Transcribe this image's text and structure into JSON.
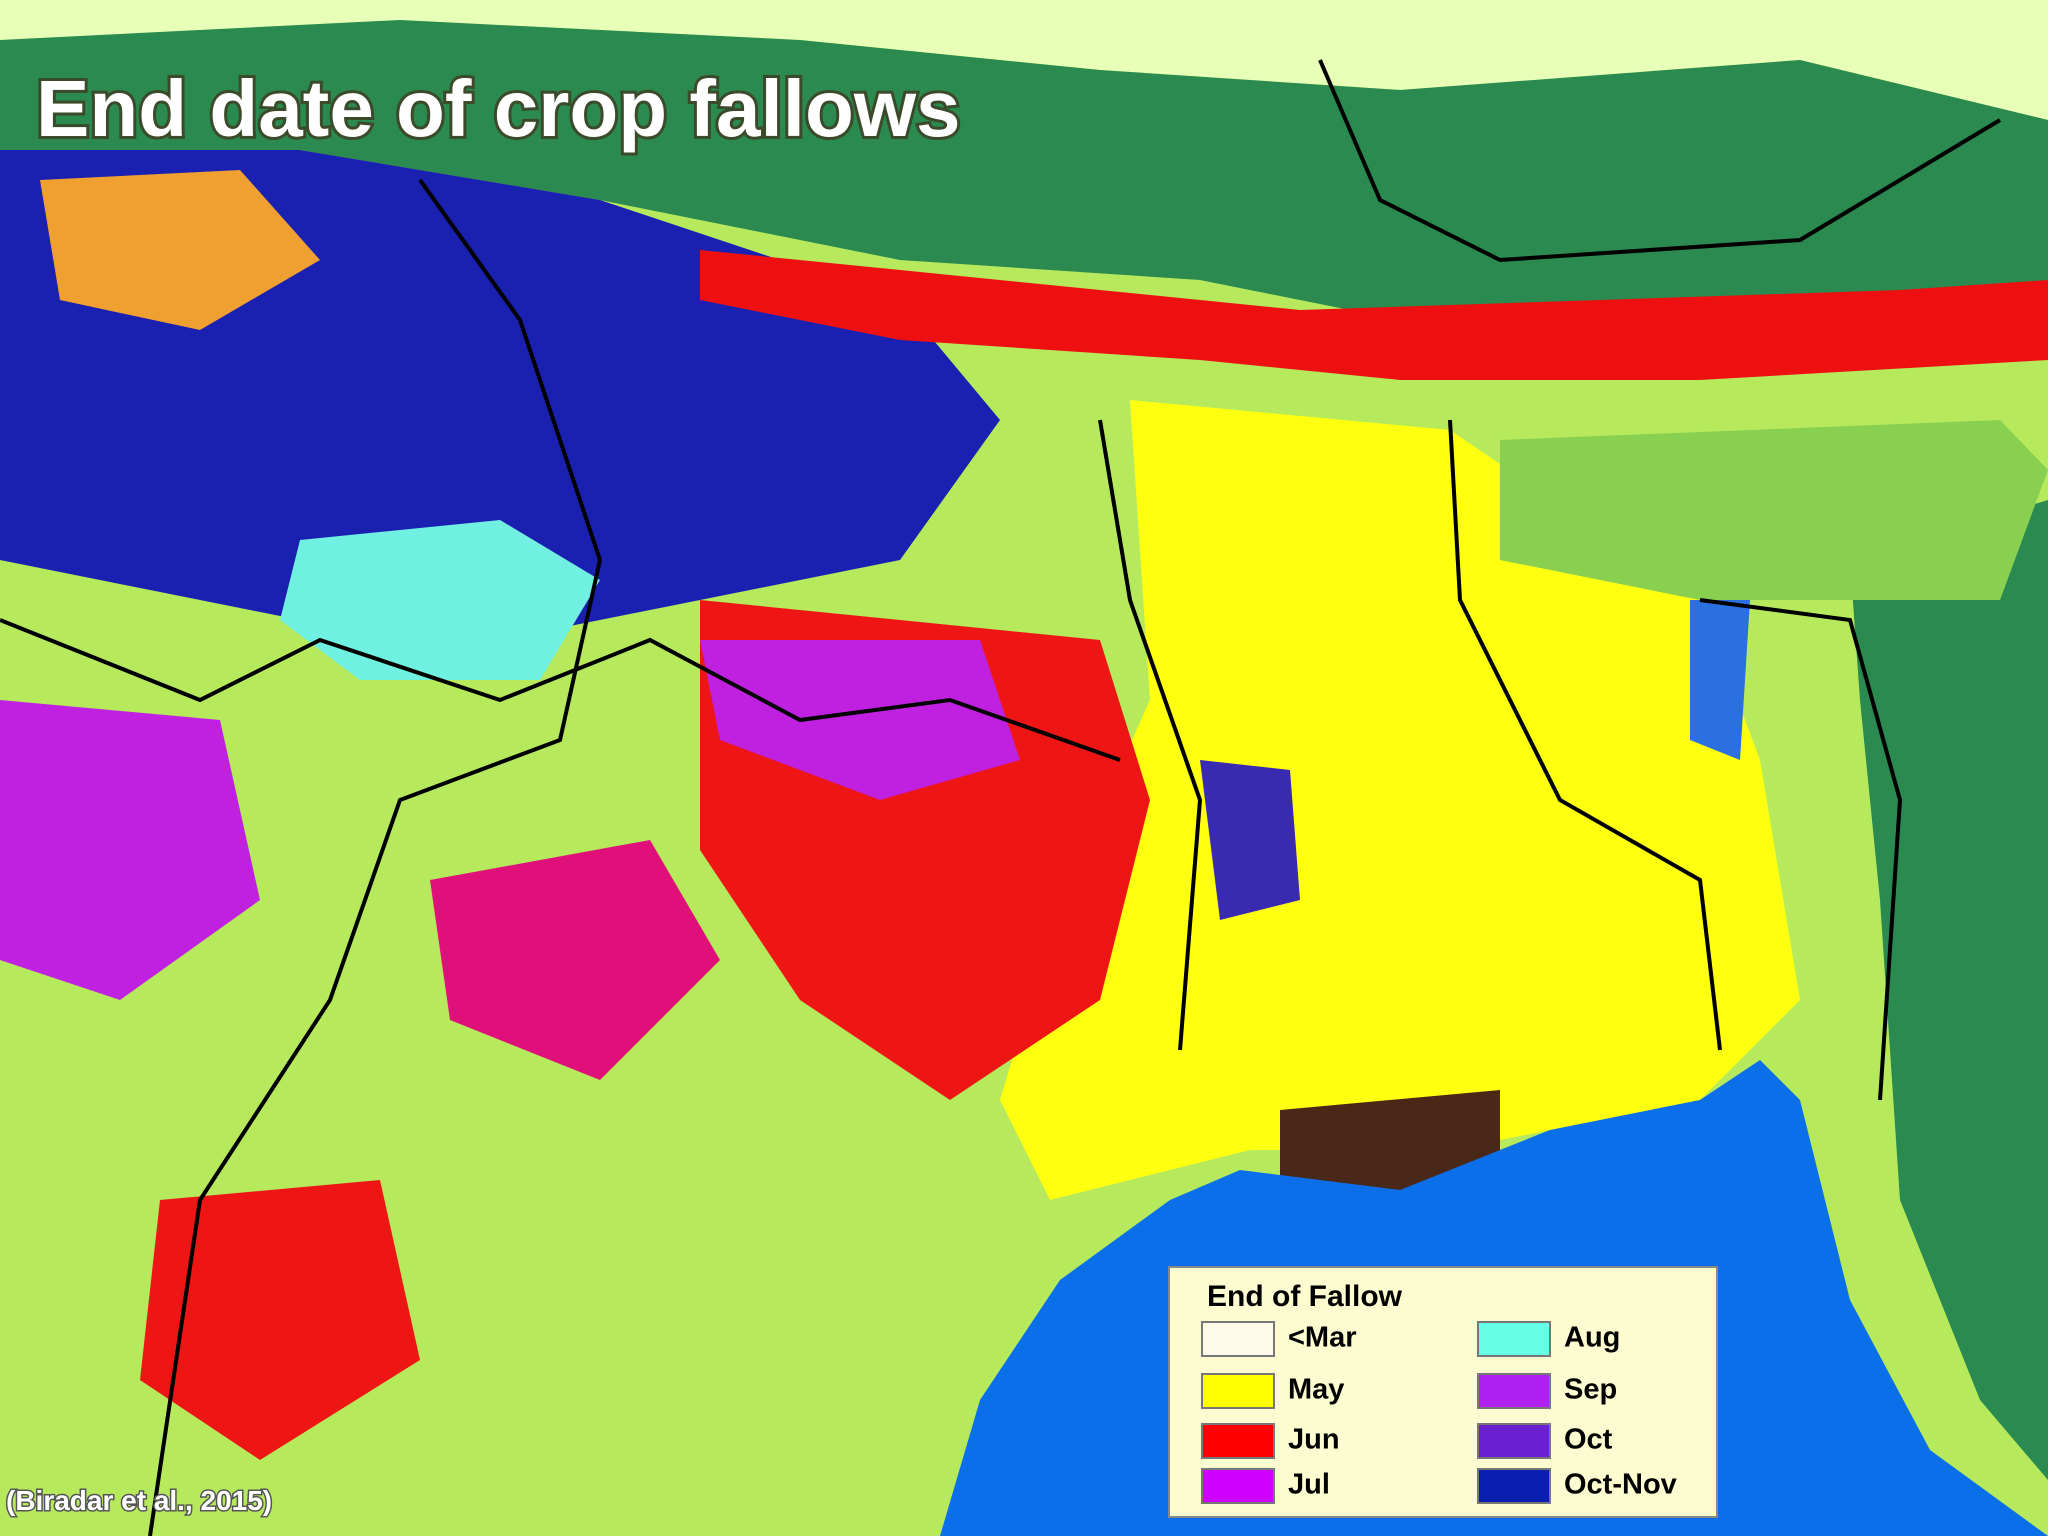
{
  "title": "End date of crop fallows",
  "citation": "(Biradar et al., 2015)",
  "legend": {
    "title": "End of Fallow",
    "items": [
      {
        "label": "<Mar",
        "color": "#fffbe8"
      },
      {
        "label": "May",
        "color": "#ffff00"
      },
      {
        "label": "Jun",
        "color": "#ff0000"
      },
      {
        "label": "Jul",
        "color": "#d000ff"
      },
      {
        "label": "Aug",
        "color": "#66ffe8"
      },
      {
        "label": "Sep",
        "color": "#b020f0"
      },
      {
        "label": "Oct",
        "color": "#6a1fd0"
      },
      {
        "label": "Oct-Nov",
        "color": "#0a1eb0"
      }
    ]
  }
}
